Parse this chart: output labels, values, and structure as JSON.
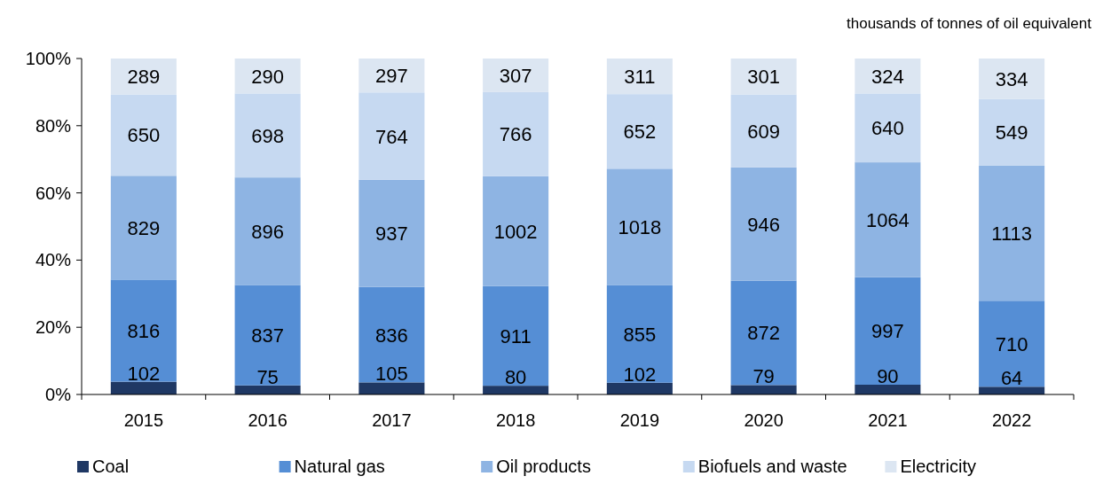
{
  "chart_data": {
    "type": "bar",
    "stacked": true,
    "subtitle": "thousands of tonnes of oil equivalent",
    "categories": [
      "2015",
      "2016",
      "2017",
      "2018",
      "2019",
      "2020",
      "2021",
      "2022"
    ],
    "series": [
      {
        "name": "Coal",
        "color": "#1f3864",
        "values": [
          3.8,
          2.7,
          3.6,
          2.6,
          3.5,
          2.8,
          2.9,
          2.3
        ]
      },
      {
        "name": "Natural gas",
        "color": "#558ed5",
        "values": [
          30.4,
          29.9,
          28.4,
          29.7,
          29.1,
          31.1,
          32.0,
          25.6
        ]
      },
      {
        "name": "Oil products",
        "color": "#8eb4e3",
        "values": [
          30.9,
          32.0,
          31.9,
          32.7,
          34.6,
          33.7,
          34.2,
          40.2
        ]
      },
      {
        "name": "Biofuels and waste",
        "color": "#c6d9f1",
        "values": [
          24.2,
          25.0,
          26.0,
          25.0,
          22.2,
          21.7,
          20.5,
          19.8
        ]
      },
      {
        "name": "Electricity",
        "color": "#dce6f2",
        "values": [
          10.7,
          10.4,
          10.1,
          10.0,
          10.6,
          10.7,
          10.4,
          12.1
        ]
      }
    ],
    "annotations": [
      {
        "text": "102",
        "x": "2015",
        "y": 3.8
      },
      {
        "text": "75",
        "x": "2016",
        "y": 2.7
      },
      {
        "text": "105",
        "x": "2017",
        "y": 3.6
      },
      {
        "text": "80",
        "x": "2018",
        "y": 2.6
      },
      {
        "text": "102",
        "x": "2019",
        "y": 3.5
      },
      {
        "text": "79",
        "x": "2020",
        "y": 2.8
      },
      {
        "text": "90",
        "x": "2021",
        "y": 2.9
      },
      {
        "text": "64",
        "x": "2022",
        "y": 2.3
      },
      {
        "text": "816",
        "x": "2015",
        "y": 34.2
      },
      {
        "text": "837",
        "x": "2016",
        "y": 32.6
      },
      {
        "text": "836",
        "x": "2017",
        "y": 32.0
      },
      {
        "text": "911",
        "x": "2018",
        "y": 32.3
      },
      {
        "text": "855",
        "x": "2019",
        "y": 32.6
      },
      {
        "text": "872",
        "x": "2020",
        "y": 33.9
      },
      {
        "text": "997",
        "x": "2021",
        "y": 34.9
      },
      {
        "text": "710",
        "x": "2022",
        "y": 27.9
      },
      {
        "text": "829",
        "x": "2015",
        "y": 65.1
      },
      {
        "text": "896",
        "x": "2016",
        "y": 64.6
      },
      {
        "text": "937",
        "x": "2017",
        "y": 63.9
      },
      {
        "text": "1002",
        "x": "2018",
        "y": 65.0
      },
      {
        "text": "1018",
        "x": "2019",
        "y": 67.2
      },
      {
        "text": "946",
        "x": "2020",
        "y": 67.6
      },
      {
        "text": "1064",
        "x": "2021",
        "y": 69.1
      },
      {
        "text": "1113",
        "x": "2022",
        "y": 68.1
      },
      {
        "text": "650",
        "x": "2015",
        "y": 89.3
      },
      {
        "text": "698",
        "x": "2016",
        "y": 89.6
      },
      {
        "text": "764",
        "x": "2017",
        "y": 89.9
      },
      {
        "text": "766",
        "x": "2018",
        "y": 90.0
      },
      {
        "text": "652",
        "x": "2019",
        "y": 89.4
      },
      {
        "text": "609",
        "x": "2020",
        "y": 89.3
      },
      {
        "text": "640",
        "x": "2021",
        "y": 89.6
      },
      {
        "text": "549",
        "x": "2022",
        "y": 87.9
      },
      {
        "text": "289",
        "x": "2015",
        "y": 100
      },
      {
        "text": "290",
        "x": "2016",
        "y": 100
      },
      {
        "text": "297",
        "x": "2017",
        "y": 100
      },
      {
        "text": "307",
        "x": "2018",
        "y": 100
      },
      {
        "text": "311",
        "x": "2019",
        "y": 100
      },
      {
        "text": "301",
        "x": "2020",
        "y": 100
      },
      {
        "text": "324",
        "x": "2021",
        "y": 100
      },
      {
        "text": "334",
        "x": "2022",
        "y": 100
      }
    ],
    "ylim": [
      0,
      100
    ],
    "yticks": [
      {
        "value": 0,
        "label": "0%"
      },
      {
        "value": 20,
        "label": "20%"
      },
      {
        "value": 40,
        "label": "40%"
      },
      {
        "value": 60,
        "label": "60%"
      },
      {
        "value": 80,
        "label": "80%"
      },
      {
        "value": 100,
        "label": "100%"
      }
    ],
    "grid": false,
    "legend": "bottom"
  }
}
